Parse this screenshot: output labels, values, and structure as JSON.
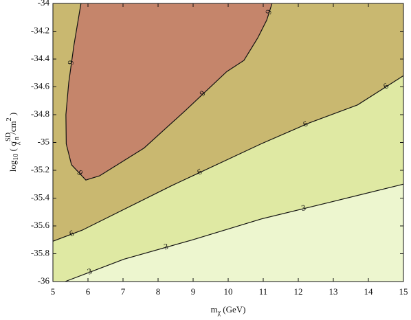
{
  "chart_data": {
    "type": "contour",
    "xlabel": {
      "main": "m",
      "sub": "χ",
      "rest": " (GeV)"
    },
    "ylabel": {
      "main": "log",
      "sub": "10",
      "open": " ( σ",
      "sup": "SD",
      "sub2": "χ n",
      "unit": " /cm",
      "unit_sup": "2",
      "close": " )"
    },
    "xlim": [
      5,
      15
    ],
    "ylim": [
      -36,
      -34
    ],
    "xticks": [
      5,
      6,
      7,
      8,
      9,
      10,
      11,
      12,
      13,
      14,
      15
    ],
    "yticks": [
      -36,
      -35.8,
      -35.6,
      -35.4,
      -35.2,
      -35,
      -34.8,
      -34.6,
      -34.4,
      -34.2,
      -34
    ],
    "band_colors": [
      "#c5856b",
      "#c9b870",
      "#dfe9a3",
      "#edf6cf"
    ],
    "contours": [
      {
        "level": -9,
        "x": [
          5.8,
          5.6,
          5.45,
          5.37,
          5.38,
          5.53,
          5.94,
          6.33,
          7.6,
          8.78,
          9.96,
          10.45,
          10.84,
          11.1,
          11.25
        ],
        "y": [
          -34,
          -34.3,
          -34.57,
          -34.8,
          -35.01,
          -35.16,
          -35.27,
          -35.24,
          -35.04,
          -34.77,
          -34.49,
          -34.41,
          -34.25,
          -34.12,
          -34
        ]
      },
      {
        "level": -6,
        "x": [
          5,
          5.84,
          8.39,
          10.94,
          12.31,
          13.69,
          15
        ],
        "y": [
          -35.71,
          -35.63,
          -35.31,
          -35.01,
          -34.86,
          -34.73,
          -34.52
        ]
      },
      {
        "level": -3,
        "x": [
          5.35,
          7.02,
          8.98,
          10.94,
          12.9,
          15
        ],
        "y": [
          -36,
          -35.84,
          -35.7,
          -35.55,
          -35.43,
          -35.3
        ]
      }
    ]
  }
}
